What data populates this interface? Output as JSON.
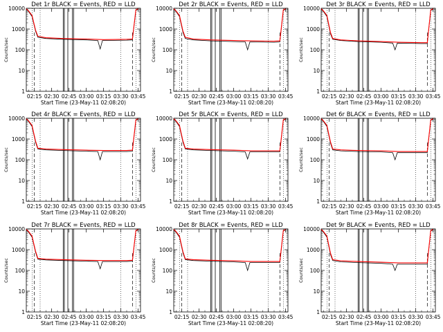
{
  "figure": {
    "ylabel": "Counts/sec",
    "xlabel": "Start Time (23-May-11 02:08:20)",
    "xticks": [
      "02:15",
      "02:30",
      "02:45",
      "03:00",
      "03:15",
      "03:30",
      "03:45"
    ],
    "yticks": [
      "1",
      "10",
      "100",
      "1000",
      "10000"
    ],
    "colors": {
      "events": "#000000",
      "lld": "#ff0000",
      "axes": "#000000"
    }
  },
  "chart_data": [
    {
      "type": "line",
      "title": "Det 1r BLACK = Events, RED = LLD",
      "xlabel": "Start Time (23-May-11 02:08:20)",
      "ylabel": "Counts/sec",
      "xlim": [
        "02:08",
        "03:47"
      ],
      "ylim": [
        1,
        10000
      ],
      "yscale": "log",
      "series": [
        {
          "name": "Events",
          "x": [
            "02:08",
            "02:10",
            "02:13",
            "02:16",
            "02:18",
            "02:25",
            "02:40",
            "03:00",
            "03:10",
            "03:12",
            "03:14",
            "03:35",
            "03:40",
            "03:43",
            "03:45"
          ],
          "y": [
            9000,
            7000,
            4000,
            800,
            400,
            350,
            320,
            300,
            280,
            110,
            280,
            290,
            300,
            8000,
            9000
          ]
        },
        {
          "name": "LLD",
          "x": [
            "02:08",
            "02:10",
            "02:13",
            "02:16",
            "02:18",
            "02:25",
            "02:40",
            "03:00",
            "03:15",
            "03:35",
            "03:40",
            "03:43",
            "03:45"
          ],
          "y": [
            9500,
            7500,
            4500,
            900,
            450,
            380,
            350,
            330,
            310,
            320,
            330,
            8500,
            9500
          ]
        }
      ]
    },
    {
      "type": "line",
      "title": "Det 2r BLACK = Events, RED = LLD",
      "xlabel": "Start Time (23-May-11 02:08:20)",
      "ylabel": "Counts/sec",
      "xlim": [
        "02:08",
        "03:47"
      ],
      "ylim": [
        1,
        10000
      ],
      "yscale": "log",
      "series": [
        {
          "name": "Events",
          "x": [
            "02:08",
            "02:10",
            "02:13",
            "02:16",
            "02:18",
            "02:25",
            "02:40",
            "03:00",
            "03:10",
            "03:12",
            "03:14",
            "03:35",
            "03:40",
            "03:43",
            "03:45"
          ],
          "y": [
            9000,
            7000,
            4000,
            700,
            350,
            300,
            270,
            250,
            240,
            100,
            240,
            230,
            240,
            8000,
            9000
          ]
        },
        {
          "name": "LLD",
          "x": [
            "02:08",
            "02:10",
            "02:13",
            "02:16",
            "02:18",
            "02:25",
            "02:40",
            "03:00",
            "03:15",
            "03:35",
            "03:40",
            "03:43",
            "03:45"
          ],
          "y": [
            9500,
            7500,
            4500,
            800,
            400,
            330,
            300,
            280,
            270,
            260,
            270,
            8500,
            9500
          ]
        }
      ]
    },
    {
      "type": "line",
      "title": "Det 3r BLACK = Events, RED = LLD",
      "xlabel": "Start Time (23-May-11 02:08:20)",
      "ylabel": "Counts/sec",
      "xlim": [
        "02:08",
        "03:47"
      ],
      "ylim": [
        1,
        10000
      ],
      "yscale": "log",
      "series": [
        {
          "name": "Events",
          "x": [
            "02:08",
            "02:10",
            "02:13",
            "02:16",
            "02:18",
            "02:25",
            "02:40",
            "03:00",
            "03:10",
            "03:12",
            "03:14",
            "03:35",
            "03:40",
            "03:43",
            "03:45"
          ],
          "y": [
            9000,
            7000,
            4000,
            600,
            320,
            280,
            250,
            230,
            210,
            100,
            210,
            200,
            200,
            8000,
            9000
          ]
        },
        {
          "name": "LLD",
          "x": [
            "02:08",
            "02:10",
            "02:13",
            "02:16",
            "02:18",
            "02:25",
            "02:40",
            "03:00",
            "03:15",
            "03:35",
            "03:40",
            "03:43",
            "03:45"
          ],
          "y": [
            9500,
            7500,
            4500,
            700,
            350,
            300,
            270,
            250,
            230,
            220,
            220,
            8500,
            9500
          ]
        }
      ]
    },
    {
      "type": "line",
      "title": "Det 4r BLACK = Events, RED = LLD",
      "xlabel": "Start Time (23-May-11 02:08:20)",
      "ylabel": "Counts/sec",
      "xlim": [
        "02:08",
        "03:47"
      ],
      "ylim": [
        1,
        10000
      ],
      "yscale": "log",
      "series": [
        {
          "name": "Events",
          "x": [
            "02:08",
            "02:10",
            "02:13",
            "02:16",
            "02:18",
            "02:25",
            "02:40",
            "03:00",
            "03:10",
            "03:12",
            "03:14",
            "03:35",
            "03:40",
            "03:43",
            "03:45"
          ],
          "y": [
            9000,
            7000,
            4000,
            700,
            330,
            300,
            280,
            260,
            250,
            100,
            250,
            250,
            260,
            8000,
            9000
          ]
        },
        {
          "name": "LLD",
          "x": [
            "02:08",
            "02:10",
            "02:13",
            "02:16",
            "02:18",
            "02:25",
            "02:40",
            "03:00",
            "03:15",
            "03:35",
            "03:40",
            "03:43",
            "03:45"
          ],
          "y": [
            9500,
            7500,
            4500,
            800,
            360,
            330,
            310,
            290,
            280,
            280,
            290,
            8500,
            9500
          ]
        }
      ]
    },
    {
      "type": "line",
      "title": "Det 5r BLACK = Events, RED = LLD",
      "xlabel": "Start Time (23-May-11 02:08:20)",
      "ylabel": "Counts/sec",
      "xlim": [
        "02:08",
        "03:47"
      ],
      "ylim": [
        1,
        10000
      ],
      "yscale": "log",
      "series": [
        {
          "name": "Events",
          "x": [
            "02:08",
            "02:10",
            "02:13",
            "02:16",
            "02:18",
            "02:25",
            "02:40",
            "03:00",
            "03:10",
            "03:12",
            "03:14",
            "03:35",
            "03:40",
            "03:43",
            "03:45"
          ],
          "y": [
            9000,
            7000,
            4000,
            700,
            330,
            300,
            280,
            260,
            240,
            110,
            240,
            240,
            240,
            8000,
            9000
          ]
        },
        {
          "name": "LLD",
          "x": [
            "02:08",
            "02:10",
            "02:13",
            "02:16",
            "02:18",
            "02:25",
            "02:40",
            "03:00",
            "03:15",
            "03:35",
            "03:40",
            "03:43",
            "03:45"
          ],
          "y": [
            9500,
            7500,
            4500,
            800,
            360,
            330,
            310,
            290,
            270,
            270,
            270,
            8500,
            9500
          ]
        }
      ]
    },
    {
      "type": "line",
      "title": "Det 6r BLACK = Events, RED = LLD",
      "xlabel": "Start Time (23-May-11 02:08:20)",
      "ylabel": "Counts/sec",
      "xlim": [
        "02:08",
        "03:47"
      ],
      "ylim": [
        1,
        10000
      ],
      "yscale": "log",
      "series": [
        {
          "name": "Events",
          "x": [
            "02:08",
            "02:10",
            "02:13",
            "02:16",
            "02:18",
            "02:25",
            "02:40",
            "03:00",
            "03:10",
            "03:12",
            "03:14",
            "03:35",
            "03:40",
            "03:43",
            "03:45"
          ],
          "y": [
            9000,
            7000,
            4000,
            650,
            300,
            270,
            250,
            240,
            220,
            100,
            220,
            220,
            220,
            8000,
            9000
          ]
        },
        {
          "name": "LLD",
          "x": [
            "02:08",
            "02:10",
            "02:13",
            "02:16",
            "02:18",
            "02:25",
            "02:40",
            "03:00",
            "03:15",
            "03:35",
            "03:40",
            "03:43",
            "03:45"
          ],
          "y": [
            9500,
            7500,
            4500,
            750,
            330,
            300,
            280,
            270,
            250,
            250,
            250,
            8500,
            9500
          ]
        }
      ]
    },
    {
      "type": "line",
      "title": "Det 7r BLACK = Events, RED = LLD",
      "xlabel": "Start Time (23-May-11 02:08:20)",
      "ylabel": "Counts/sec",
      "xlim": [
        "02:08",
        "03:47"
      ],
      "ylim": [
        1,
        10000
      ],
      "yscale": "log",
      "series": [
        {
          "name": "Events",
          "x": [
            "02:08",
            "02:10",
            "02:13",
            "02:16",
            "02:18",
            "02:25",
            "02:40",
            "03:00",
            "03:10",
            "03:12",
            "03:14",
            "03:35",
            "03:40",
            "03:43",
            "03:45"
          ],
          "y": [
            9000,
            7000,
            4000,
            750,
            350,
            320,
            300,
            280,
            270,
            120,
            270,
            270,
            280,
            8000,
            9000
          ]
        },
        {
          "name": "LLD",
          "x": [
            "02:08",
            "02:10",
            "02:13",
            "02:16",
            "02:18",
            "02:25",
            "02:40",
            "03:00",
            "03:15",
            "03:35",
            "03:40",
            "03:43",
            "03:45"
          ],
          "y": [
            9500,
            7500,
            4500,
            850,
            380,
            350,
            330,
            310,
            300,
            300,
            310,
            8500,
            9500
          ]
        }
      ]
    },
    {
      "type": "line",
      "title": "Det 8r BLACK = Events, RED = LLD",
      "xlabel": "Start Time (23-May-11 02:08:20)",
      "ylabel": "Counts/sec",
      "xlim": [
        "02:08",
        "03:47"
      ],
      "ylim": [
        1,
        10000
      ],
      "yscale": "log",
      "series": [
        {
          "name": "Events",
          "x": [
            "02:08",
            "02:10",
            "02:13",
            "02:16",
            "02:18",
            "02:25",
            "02:40",
            "03:00",
            "03:10",
            "03:12",
            "03:14",
            "03:35",
            "03:40",
            "03:43",
            "03:45"
          ],
          "y": [
            9000,
            7000,
            4000,
            700,
            330,
            300,
            280,
            260,
            240,
            100,
            240,
            240,
            240,
            8000,
            9000
          ]
        },
        {
          "name": "LLD",
          "x": [
            "02:08",
            "02:10",
            "02:13",
            "02:16",
            "02:18",
            "02:25",
            "02:40",
            "03:00",
            "03:15",
            "03:35",
            "03:40",
            "03:43",
            "03:45"
          ],
          "y": [
            9500,
            7500,
            4500,
            800,
            360,
            330,
            310,
            290,
            270,
            270,
            270,
            8500,
            9500
          ]
        }
      ]
    },
    {
      "type": "line",
      "title": "Det 9r BLACK = Events, RED = LLD",
      "xlabel": "Start Time (23-May-11 02:08:20)",
      "ylabel": "Counts/sec",
      "xlim": [
        "02:08",
        "03:47"
      ],
      "ylim": [
        1,
        10000
      ],
      "yscale": "log",
      "series": [
        {
          "name": "Events",
          "x": [
            "02:08",
            "02:10",
            "02:13",
            "02:16",
            "02:18",
            "02:25",
            "02:40",
            "03:00",
            "03:10",
            "03:12",
            "03:14",
            "03:35",
            "03:40",
            "03:43",
            "03:45"
          ],
          "y": [
            9000,
            7000,
            4000,
            600,
            300,
            260,
            240,
            220,
            200,
            100,
            200,
            200,
            200,
            8000,
            9000
          ]
        },
        {
          "name": "LLD",
          "x": [
            "02:08",
            "02:10",
            "02:13",
            "02:16",
            "02:18",
            "02:25",
            "02:40",
            "03:00",
            "03:15",
            "03:35",
            "03:40",
            "03:43",
            "03:45"
          ],
          "y": [
            9500,
            7500,
            4500,
            700,
            330,
            290,
            270,
            250,
            230,
            230,
            230,
            8500,
            9500
          ]
        }
      ]
    }
  ]
}
